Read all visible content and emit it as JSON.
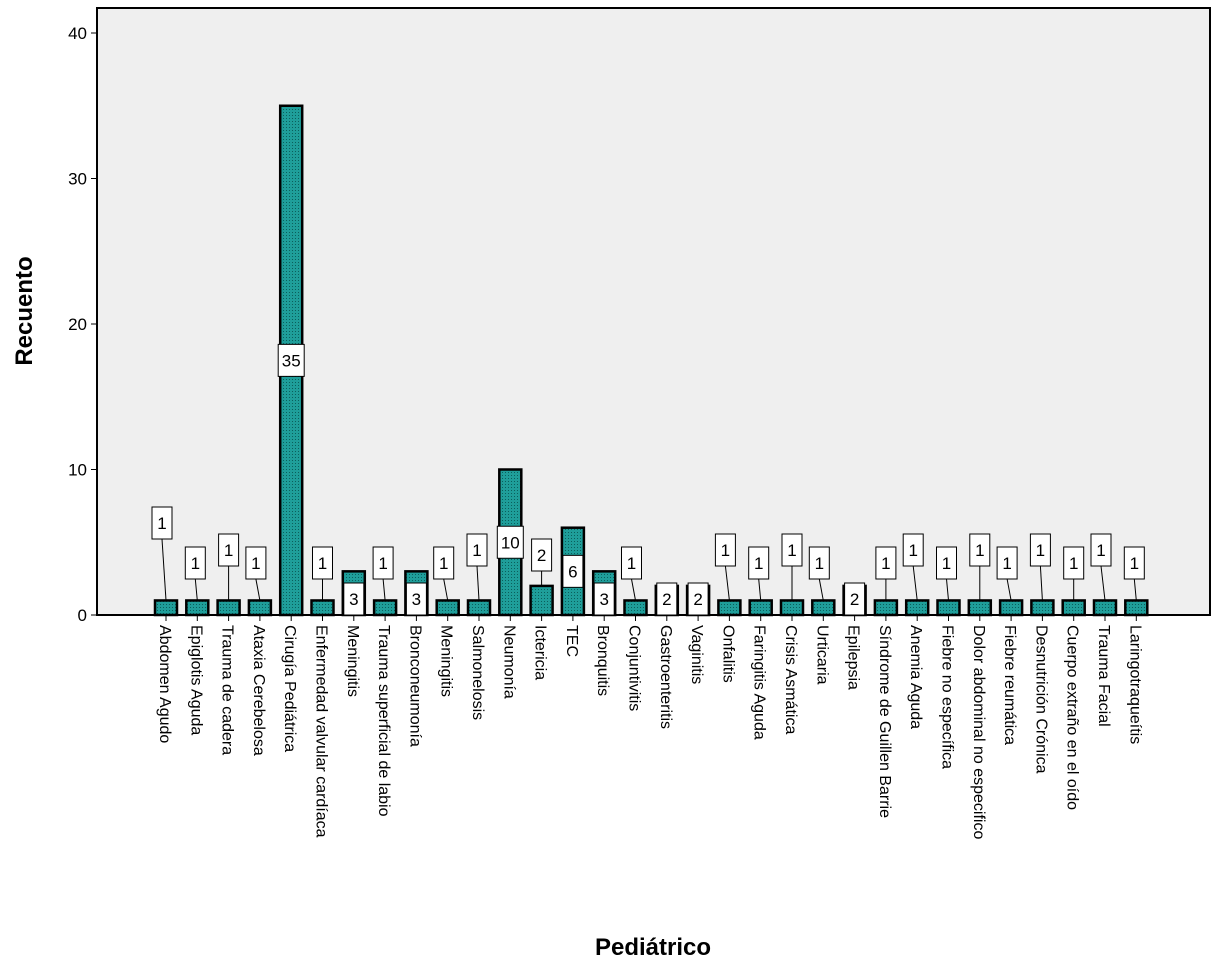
{
  "chart_data": {
    "type": "bar",
    "title": "",
    "xlabel": "Pediátrico",
    "ylabel": "Recuento",
    "ylim": [
      0,
      42
    ],
    "yticks": [
      0,
      10,
      20,
      30,
      40
    ],
    "grid": false,
    "legend": "none",
    "colors": {
      "bar_fill": "#1f9e9a",
      "bar_stroke": "#000000",
      "plot_bg": "#efefef"
    },
    "categories": [
      "Abdomen Agudo",
      "Epiglotis Aguda",
      "Trauma de cadera",
      "Ataxia Cerebelosa",
      "Cirugía Pediátrica",
      "Enfermedad valvular cardíaca",
      "Meningitis",
      "Trauma superficial de labio",
      "Bronconeumonía",
      "Meningitis",
      "Salmonelosis",
      "Neumonía",
      "Ictericia",
      "TEC",
      "Bronquitis",
      "Conjuntivitis",
      "Gastroenteritis",
      "Vaginitis",
      "Onfalitis",
      "Faringitis Aguda",
      "Crisis Asmática",
      "Urticaria",
      "Epilepsia",
      "Síndrome de Guillen Barrie",
      "Anemia Aguda",
      "Fiebre no específica",
      "Dolor abdominal no especifico",
      "Fiebre reumática",
      "Desnutrición Crónica",
      "Cuerpo extraño en el oído",
      "Trauma Facial",
      "Laringotraqueítis"
    ],
    "values": [
      1,
      1,
      1,
      1,
      35,
      1,
      3,
      1,
      3,
      1,
      1,
      10,
      2,
      6,
      3,
      1,
      2,
      2,
      1,
      1,
      1,
      1,
      2,
      1,
      1,
      1,
      1,
      1,
      1,
      1,
      1,
      1
    ]
  }
}
